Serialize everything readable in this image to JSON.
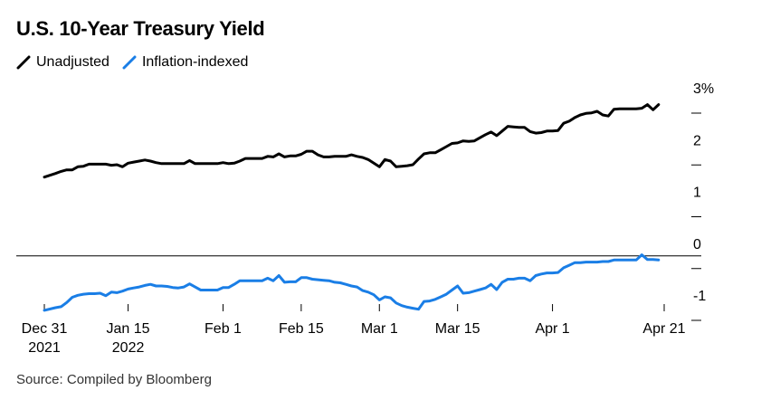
{
  "title": "U.S. 10-Year Treasury Yield",
  "source": "Source: Compiled by Bloomberg",
  "chart_data": {
    "type": "line",
    "title": "U.S. 10-Year Treasury Yield",
    "ylim": [
      -1.25,
      3.1
    ],
    "y_ticks": [
      -1,
      0,
      1,
      2,
      3
    ],
    "y_tick_labels": [
      "-1",
      "0",
      "1",
      "2",
      "3%"
    ],
    "x_ticks": [
      {
        "day": 0,
        "label": [
          "Dec 31",
          "2021"
        ]
      },
      {
        "day": 15,
        "label": [
          "Jan 15",
          "2022"
        ]
      },
      {
        "day": 32,
        "label": [
          "Feb 1"
        ]
      },
      {
        "day": 46,
        "label": [
          "Feb 15"
        ]
      },
      {
        "day": 60,
        "label": [
          "Mar 1"
        ]
      },
      {
        "day": 74,
        "label": [
          "Mar 15"
        ]
      },
      {
        "day": 91,
        "label": [
          "Apr 1"
        ]
      },
      {
        "day": 111,
        "label": [
          "Apr 21"
        ]
      }
    ],
    "zero_line": 0,
    "grid": false,
    "legend": "top-left",
    "series": [
      {
        "name": "Unadjusted",
        "color": "#000000",
        "points": [
          [
            0,
            1.52
          ],
          [
            2,
            1.59
          ],
          [
            3,
            1.63
          ],
          [
            4,
            1.66
          ],
          [
            5,
            1.66
          ],
          [
            6,
            1.72
          ],
          [
            7,
            1.73
          ],
          [
            8,
            1.77
          ],
          [
            9,
            1.77
          ],
          [
            10,
            1.77
          ],
          [
            11,
            1.77
          ],
          [
            12,
            1.75
          ],
          [
            13,
            1.76
          ],
          [
            14,
            1.72
          ],
          [
            15,
            1.79
          ],
          [
            16,
            1.81
          ],
          [
            17,
            1.83
          ],
          [
            18,
            1.85
          ],
          [
            19,
            1.83
          ],
          [
            20,
            1.8
          ],
          [
            21,
            1.78
          ],
          [
            22,
            1.78
          ],
          [
            23,
            1.78
          ],
          [
            24,
            1.78
          ],
          [
            25,
            1.78
          ],
          [
            26,
            1.84
          ],
          [
            27,
            1.78
          ],
          [
            28,
            1.78
          ],
          [
            29,
            1.78
          ],
          [
            30,
            1.78
          ],
          [
            31,
            1.78
          ],
          [
            32,
            1.8
          ],
          [
            33,
            1.78
          ],
          [
            34,
            1.79
          ],
          [
            35,
            1.83
          ],
          [
            36,
            1.88
          ],
          [
            37,
            1.88
          ],
          [
            38,
            1.88
          ],
          [
            39,
            1.88
          ],
          [
            40,
            1.92
          ],
          [
            41,
            1.91
          ],
          [
            42,
            1.97
          ],
          [
            43,
            1.91
          ],
          [
            44,
            1.93
          ],
          [
            45,
            1.93
          ],
          [
            46,
            1.96
          ],
          [
            47,
            2.02
          ],
          [
            48,
            2.02
          ],
          [
            49,
            1.95
          ],
          [
            50,
            1.91
          ],
          [
            51,
            1.91
          ],
          [
            52,
            1.92
          ],
          [
            53,
            1.92
          ],
          [
            54,
            1.92
          ],
          [
            55,
            1.95
          ],
          [
            56,
            1.92
          ],
          [
            57,
            1.9
          ],
          [
            58,
            1.86
          ],
          [
            59,
            1.79
          ],
          [
            60,
            1.72
          ],
          [
            61,
            1.86
          ],
          [
            62,
            1.83
          ],
          [
            63,
            1.72
          ],
          [
            64,
            1.73
          ],
          [
            65,
            1.74
          ],
          [
            66,
            1.76
          ],
          [
            67,
            1.87
          ],
          [
            68,
            1.97
          ],
          [
            69,
            1.99
          ],
          [
            70,
            1.99
          ],
          [
            71,
            2.05
          ],
          [
            72,
            2.11
          ],
          [
            73,
            2.17
          ],
          [
            74,
            2.18
          ],
          [
            75,
            2.22
          ],
          [
            76,
            2.21
          ],
          [
            77,
            2.22
          ],
          [
            78,
            2.28
          ],
          [
            79,
            2.34
          ],
          [
            80,
            2.39
          ],
          [
            81,
            2.32
          ],
          [
            82,
            2.41
          ],
          [
            83,
            2.5
          ],
          [
            84,
            2.49
          ],
          [
            85,
            2.48
          ],
          [
            86,
            2.48
          ],
          [
            87,
            2.4
          ],
          [
            88,
            2.37
          ],
          [
            89,
            2.38
          ],
          [
            90,
            2.41
          ],
          [
            91,
            2.41
          ],
          [
            92,
            2.42
          ],
          [
            93,
            2.56
          ],
          [
            94,
            2.6
          ],
          [
            95,
            2.67
          ],
          [
            96,
            2.72
          ],
          [
            97,
            2.75
          ],
          [
            98,
            2.76
          ],
          [
            99,
            2.79
          ],
          [
            100,
            2.72
          ],
          [
            101,
            2.7
          ],
          [
            102,
            2.83
          ],
          [
            103,
            2.84
          ],
          [
            104,
            2.84
          ],
          [
            105,
            2.84
          ],
          [
            106,
            2.84
          ],
          [
            107,
            2.85
          ],
          [
            108,
            2.92
          ],
          [
            109,
            2.82
          ],
          [
            110,
            2.92
          ]
        ]
      },
      {
        "name": "Inflation-indexed",
        "color": "#1a7ee6",
        "points": [
          [
            0,
            -1.05
          ],
          [
            2,
            -1.0
          ],
          [
            3,
            -0.98
          ],
          [
            4,
            -0.9
          ],
          [
            5,
            -0.8
          ],
          [
            6,
            -0.76
          ],
          [
            7,
            -0.74
          ],
          [
            8,
            -0.73
          ],
          [
            9,
            -0.73
          ],
          [
            10,
            -0.72
          ],
          [
            11,
            -0.77
          ],
          [
            12,
            -0.7
          ],
          [
            13,
            -0.71
          ],
          [
            14,
            -0.68
          ],
          [
            15,
            -0.64
          ],
          [
            16,
            -0.62
          ],
          [
            17,
            -0.6
          ],
          [
            18,
            -0.57
          ],
          [
            19,
            -0.55
          ],
          [
            20,
            -0.58
          ],
          [
            21,
            -0.58
          ],
          [
            22,
            -0.59
          ],
          [
            23,
            -0.61
          ],
          [
            24,
            -0.62
          ],
          [
            25,
            -0.6
          ],
          [
            26,
            -0.54
          ],
          [
            27,
            -0.6
          ],
          [
            28,
            -0.66
          ],
          [
            29,
            -0.66
          ],
          [
            30,
            -0.66
          ],
          [
            31,
            -0.66
          ],
          [
            32,
            -0.61
          ],
          [
            33,
            -0.61
          ],
          [
            34,
            -0.55
          ],
          [
            35,
            -0.48
          ],
          [
            36,
            -0.48
          ],
          [
            37,
            -0.48
          ],
          [
            38,
            -0.48
          ],
          [
            39,
            -0.48
          ],
          [
            40,
            -0.43
          ],
          [
            41,
            -0.48
          ],
          [
            42,
            -0.38
          ],
          [
            43,
            -0.51
          ],
          [
            44,
            -0.5
          ],
          [
            45,
            -0.5
          ],
          [
            46,
            -0.42
          ],
          [
            47,
            -0.42
          ],
          [
            48,
            -0.45
          ],
          [
            49,
            -0.46
          ],
          [
            50,
            -0.47
          ],
          [
            51,
            -0.48
          ],
          [
            52,
            -0.51
          ],
          [
            53,
            -0.52
          ],
          [
            54,
            -0.55
          ],
          [
            55,
            -0.58
          ],
          [
            56,
            -0.6
          ],
          [
            57,
            -0.67
          ],
          [
            58,
            -0.7
          ],
          [
            59,
            -0.75
          ],
          [
            60,
            -0.85
          ],
          [
            61,
            -0.79
          ],
          [
            62,
            -0.81
          ],
          [
            63,
            -0.91
          ],
          [
            64,
            -0.96
          ],
          [
            65,
            -0.99
          ],
          [
            66,
            -1.01
          ],
          [
            67,
            -1.03
          ],
          [
            68,
            -0.88
          ],
          [
            69,
            -0.87
          ],
          [
            70,
            -0.84
          ],
          [
            71,
            -0.79
          ],
          [
            72,
            -0.74
          ],
          [
            73,
            -0.66
          ],
          [
            74,
            -0.58
          ],
          [
            75,
            -0.72
          ],
          [
            76,
            -0.71
          ],
          [
            77,
            -0.68
          ],
          [
            78,
            -0.65
          ],
          [
            79,
            -0.62
          ],
          [
            80,
            -0.55
          ],
          [
            81,
            -0.65
          ],
          [
            82,
            -0.51
          ],
          [
            83,
            -0.45
          ],
          [
            84,
            -0.45
          ],
          [
            85,
            -0.43
          ],
          [
            86,
            -0.43
          ],
          [
            87,
            -0.48
          ],
          [
            88,
            -0.38
          ],
          [
            89,
            -0.35
          ],
          [
            90,
            -0.33
          ],
          [
            91,
            -0.33
          ],
          [
            92,
            -0.32
          ],
          [
            93,
            -0.23
          ],
          [
            94,
            -0.18
          ],
          [
            95,
            -0.13
          ],
          [
            96,
            -0.13
          ],
          [
            97,
            -0.12
          ],
          [
            98,
            -0.12
          ],
          [
            99,
            -0.12
          ],
          [
            100,
            -0.11
          ],
          [
            101,
            -0.11
          ],
          [
            102,
            -0.08
          ],
          [
            103,
            -0.08
          ],
          [
            104,
            -0.08
          ],
          [
            105,
            -0.08
          ],
          [
            106,
            -0.08
          ],
          [
            107,
            0.02
          ],
          [
            108,
            -0.07
          ],
          [
            109,
            -0.07
          ],
          [
            110,
            -0.08
          ]
        ]
      }
    ]
  }
}
